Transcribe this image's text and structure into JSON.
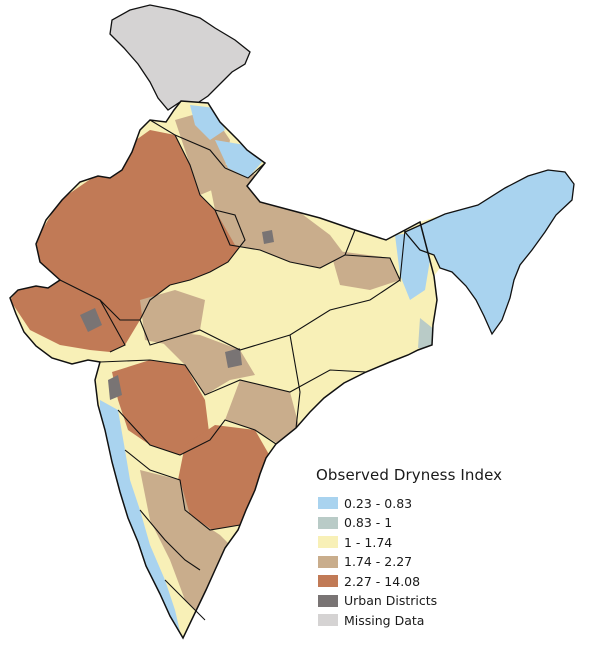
{
  "legend": {
    "title": "Observed Dryness Index",
    "items": [
      {
        "label": "0.23 - 0.83",
        "color": "#a9d3ef"
      },
      {
        "label": "0.83 - 1",
        "color": "#b9cbc7"
      },
      {
        "label": "1 - 1.74",
        "color": "#f8f0b7"
      },
      {
        "label": "1.74 - 2.27",
        "color": "#c9ad8c"
      },
      {
        "label": "2.27 - 14.08",
        "color": "#c17a56"
      },
      {
        "label": "Urban Districts",
        "color": "#797474"
      },
      {
        "label": "Missing Data",
        "color": "#d5d3d3"
      }
    ]
  }
}
